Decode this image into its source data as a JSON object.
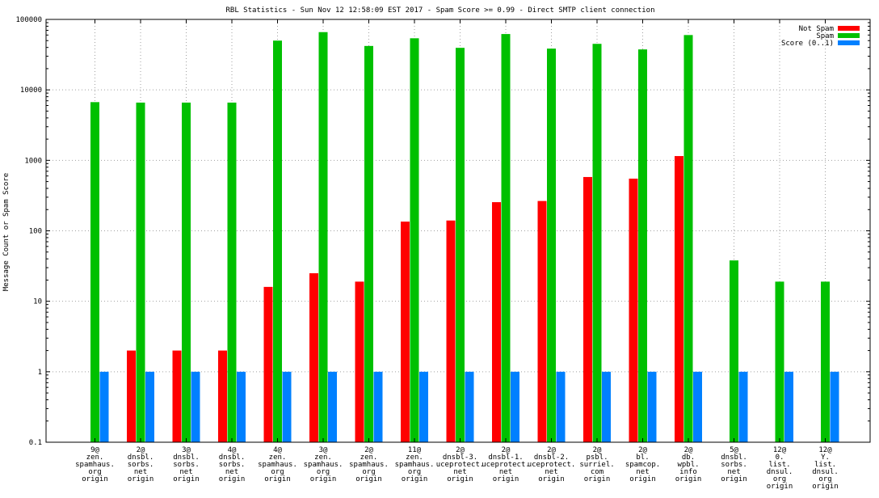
{
  "chart_data": {
    "type": "bar",
    "title": "RBL Statistics - Sun Nov 12 12:58:09 EST 2017 - Spam Score >= 0.99 - Direct SMTP client connection",
    "xlabel": "",
    "ylabel": "Message Count or Spam Score",
    "yscale": "log",
    "ylim": [
      0.1,
      100000
    ],
    "yticks": [
      "0.1",
      "1",
      "10",
      "100",
      "1000",
      "10000",
      "100000"
    ],
    "grid": true,
    "legend_position": "top-right",
    "categories": [
      [
        "9@",
        "zen.",
        "spamhaus.",
        "org",
        "origin"
      ],
      [
        "2@",
        "dnsbl.",
        "sorbs.",
        "net",
        "origin"
      ],
      [
        "3@",
        "dnsbl.",
        "sorbs.",
        "net",
        "origin"
      ],
      [
        "4@",
        "dnsbl.",
        "sorbs.",
        "net",
        "origin"
      ],
      [
        "4@",
        "zen.",
        "spamhaus.",
        "org",
        "origin"
      ],
      [
        "3@",
        "zen.",
        "spamhaus.",
        "org",
        "origin"
      ],
      [
        "2@",
        "zen.",
        "spamhaus.",
        "org",
        "origin"
      ],
      [
        "11@",
        "zen.",
        "spamhaus.",
        "org",
        "origin"
      ],
      [
        "2@",
        "dnsbl-3.",
        "uceprotect.",
        "net",
        "origin"
      ],
      [
        "2@",
        "dnsbl-1.",
        "uceprotect.",
        "net",
        "origin"
      ],
      [
        "2@",
        "dnsbl-2.",
        "uceprotect.",
        "net",
        "origin"
      ],
      [
        "2@",
        "psbl.",
        "surriel.",
        "com",
        "origin"
      ],
      [
        "2@",
        "bl.",
        "spamcop.",
        "net",
        "origin"
      ],
      [
        "2@",
        "db.",
        "wpbl.",
        "info",
        "origin"
      ],
      [
        "5@",
        "dnsbl.",
        "sorbs.",
        "net",
        "origin"
      ],
      [
        "12@",
        "0.",
        "list.",
        "dnsul.",
        "org",
        "origin"
      ],
      [
        "12@",
        "Y.",
        "list.",
        "dnsul.",
        "org",
        "origin"
      ]
    ],
    "series": [
      {
        "name": "Not Spam",
        "color": "#ff0000",
        "values": [
          null,
          2,
          2,
          2,
          16,
          25,
          19,
          135,
          140,
          255,
          265,
          580,
          550,
          1150,
          null,
          null,
          null
        ]
      },
      {
        "name": "Spam",
        "color": "#00c000",
        "values": [
          6700,
          6600,
          6600,
          6600,
          50000,
          66000,
          42000,
          54000,
          39500,
          62000,
          38500,
          45000,
          37500,
          60000,
          38,
          19,
          19
        ]
      },
      {
        "name": "Score (0..1)",
        "color": "#0080ff",
        "values": [
          1,
          1,
          1,
          1,
          1,
          1,
          1,
          1,
          1,
          1,
          1,
          1,
          1,
          1,
          1,
          1,
          1
        ]
      }
    ]
  }
}
